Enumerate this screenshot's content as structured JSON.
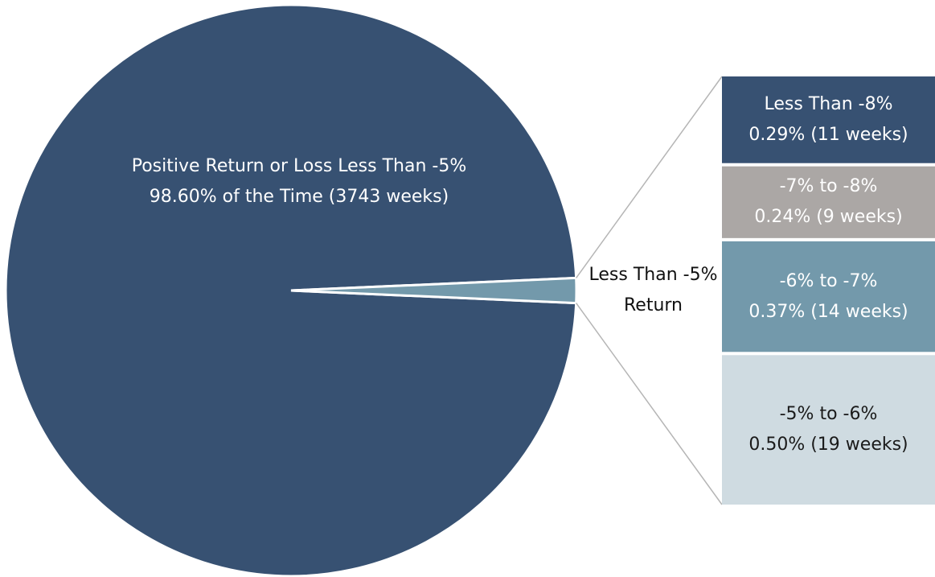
{
  "chart_data": {
    "type": "pie",
    "slices": [
      {
        "name": "Positive Return or Loss Less Than -5%",
        "value": 98.6,
        "value_label": "98.60% of the Time (3743 weeks)",
        "color": "#375172"
      },
      {
        "name": "Less Than -5% Return",
        "value": 1.4,
        "color": "#7399ab"
      }
    ],
    "breakdown": {
      "categories": [
        "Less Than -8%",
        "-7% to -8%",
        "-6% to -7%",
        "-5% to -6%"
      ],
      "values": [
        0.29,
        0.24,
        0.37,
        0.5
      ],
      "value_labels": [
        "0.29% (11 weeks)",
        "0.24% (9 weeks)",
        "0.37% (14 weeks)",
        "0.50% (19 weeks)"
      ],
      "colors": [
        "#375172",
        "#aba7a5",
        "#7399ab",
        "#cfdbe1"
      ],
      "text_colors": [
        "#ffffff",
        "#ffffff",
        "#ffffff",
        "#1a1a1a"
      ]
    }
  }
}
